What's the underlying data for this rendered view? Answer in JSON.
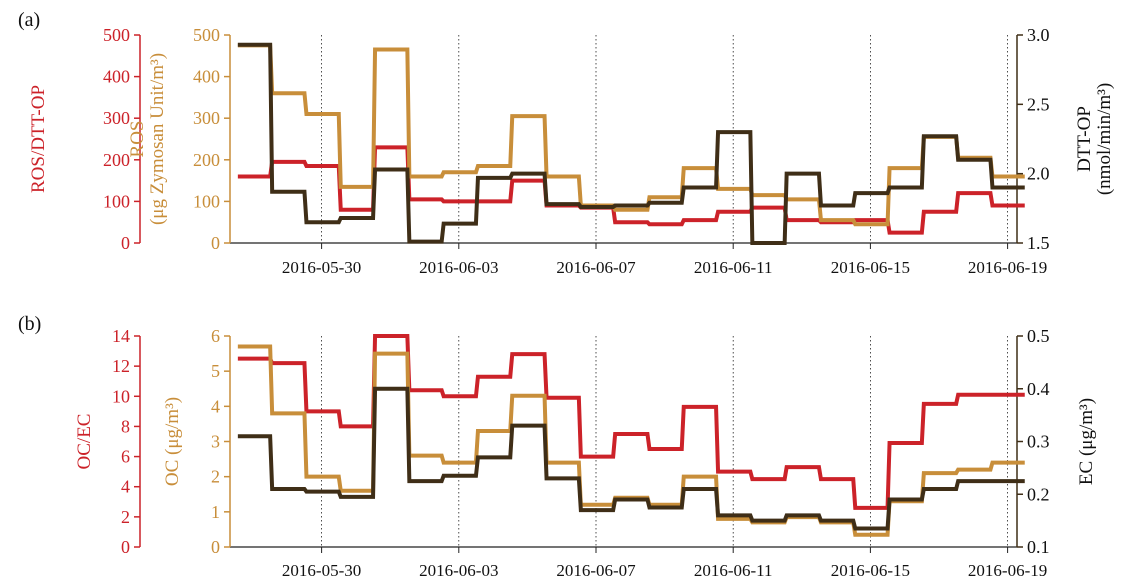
{
  "colors": {
    "red": "#cc2229",
    "gold": "#c88e3a",
    "dark": "#3f2e17",
    "grid": "#222222",
    "axis": "#222222"
  },
  "chart_data": [
    {
      "type": "line",
      "panel_label": "(a)",
      "step": true,
      "grid": "vertical dotted lines at labelled dates",
      "x_ticks": [
        "2016-05-30",
        "2016-06-03",
        "2016-06-07",
        "2016-06-11",
        "2016-06-15",
        "2016-06-19"
      ],
      "x": [
        "2016-05-28",
        "2016-05-29",
        "2016-05-30",
        "2016-05-31",
        "2016-06-01",
        "2016-06-02",
        "2016-06-03",
        "2016-06-04",
        "2016-06-05",
        "2016-06-06",
        "2016-06-07",
        "2016-06-08",
        "2016-06-09",
        "2016-06-10",
        "2016-06-11",
        "2016-06-12",
        "2016-06-13",
        "2016-06-14",
        "2016-06-15",
        "2016-06-16",
        "2016-06-17",
        "2016-06-18",
        "2016-06-19"
      ],
      "axes": [
        {
          "key": "left_outer",
          "label": "ROS/DTT-OP",
          "range": [
            0,
            500
          ],
          "ticks": [
            0,
            100,
            200,
            300,
            400,
            500
          ],
          "color_key": "red"
        },
        {
          "key": "left_inner",
          "label_lines": [
            "ROS",
            "(μg Zymosan Unit/m³)"
          ],
          "range": [
            0,
            500
          ],
          "ticks": [
            0,
            100,
            200,
            300,
            400,
            500
          ],
          "color_key": "gold"
        },
        {
          "key": "right",
          "label_lines": [
            "DTT-OP",
            "(nmol/min/m³)"
          ],
          "range": [
            1.5,
            3.0
          ],
          "ticks": [
            "1.5",
            "2.0",
            "2.5",
            "3.0"
          ],
          "color_key": "dark"
        }
      ],
      "series": [
        {
          "axis": "left_outer",
          "color_key": "red",
          "values": [
            160,
            195,
            185,
            80,
            230,
            105,
            100,
            100,
            150,
            90,
            85,
            50,
            45,
            55,
            75,
            85,
            55,
            50,
            55,
            25,
            75,
            120,
            90
          ]
        },
        {
          "axis": "left_inner",
          "color_key": "gold",
          "values": [
            475,
            360,
            310,
            135,
            465,
            160,
            170,
            185,
            305,
            160,
            90,
            80,
            110,
            180,
            130,
            115,
            105,
            55,
            45,
            180,
            255,
            205,
            160
          ]
        },
        {
          "axis": "right",
          "color_key": "dark",
          "values": [
            2.93,
            1.87,
            1.65,
            1.68,
            2.03,
            1.51,
            1.64,
            1.97,
            2.0,
            1.78,
            1.76,
            1.77,
            1.79,
            1.9,
            2.3,
            1.5,
            2.0,
            1.77,
            1.86,
            1.9,
            2.27,
            2.1,
            1.9
          ]
        }
      ]
    },
    {
      "type": "line",
      "panel_label": "(b)",
      "step": true,
      "grid": "vertical dotted lines at labelled dates",
      "x_ticks": [
        "2016-05-30",
        "2016-06-03",
        "2016-06-07",
        "2016-06-11",
        "2016-06-15",
        "2016-06-19"
      ],
      "x": [
        "2016-05-28",
        "2016-05-29",
        "2016-05-30",
        "2016-05-31",
        "2016-06-01",
        "2016-06-02",
        "2016-06-03",
        "2016-06-04",
        "2016-06-05",
        "2016-06-06",
        "2016-06-07",
        "2016-06-08",
        "2016-06-09",
        "2016-06-10",
        "2016-06-11",
        "2016-06-12",
        "2016-06-13",
        "2016-06-14",
        "2016-06-15",
        "2016-06-16",
        "2016-06-17",
        "2016-06-18",
        "2016-06-19"
      ],
      "axes": [
        {
          "key": "left_outer",
          "label": "OC/EC",
          "range": [
            0,
            14
          ],
          "ticks": [
            0,
            2,
            4,
            6,
            8,
            10,
            12,
            14
          ],
          "color_key": "red"
        },
        {
          "key": "left_inner",
          "label": "OC (μg/m³)",
          "range": [
            0,
            6
          ],
          "ticks": [
            0,
            1,
            2,
            3,
            4,
            5,
            6
          ],
          "color_key": "gold"
        },
        {
          "key": "right",
          "label": "EC (μg/m³)",
          "range": [
            0.1,
            0.5
          ],
          "ticks": [
            "0.1",
            "0.2",
            "0.3",
            "0.4",
            "0.5"
          ],
          "color_key": "dark"
        }
      ],
      "series": [
        {
          "axis": "left_outer",
          "color_key": "red",
          "values": [
            12.5,
            12.2,
            9.0,
            8.0,
            14.0,
            10.4,
            10.0,
            11.3,
            12.8,
            9.9,
            6.0,
            7.5,
            6.5,
            9.3,
            5.0,
            4.5,
            5.3,
            4.5,
            2.6,
            6.9,
            9.5,
            10.1,
            10.1
          ]
        },
        {
          "axis": "left_inner",
          "color_key": "gold",
          "values": [
            5.7,
            3.8,
            2.0,
            1.6,
            5.5,
            2.6,
            2.4,
            3.3,
            4.3,
            2.4,
            1.2,
            1.4,
            1.2,
            2.0,
            0.8,
            0.7,
            0.85,
            0.7,
            0.35,
            1.3,
            2.1,
            2.2,
            2.4
          ]
        },
        {
          "axis": "right",
          "color_key": "dark",
          "values": [
            0.31,
            0.21,
            0.205,
            0.195,
            0.4,
            0.225,
            0.235,
            0.27,
            0.33,
            0.23,
            0.17,
            0.19,
            0.175,
            0.21,
            0.16,
            0.15,
            0.16,
            0.15,
            0.135,
            0.19,
            0.21,
            0.225,
            0.225
          ]
        }
      ]
    }
  ]
}
